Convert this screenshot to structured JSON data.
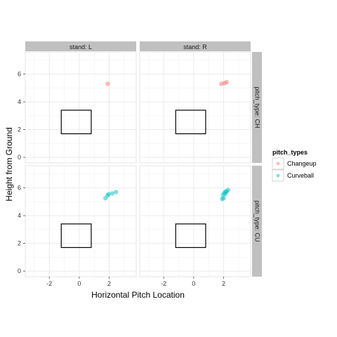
{
  "chart_data": {
    "type": "scatter",
    "xlabel": "Horizontal Pitch Location",
    "ylabel": "Height from Ground",
    "xlim": [
      -3.6,
      3.8
    ],
    "ylim": [
      -0.4,
      7.6
    ],
    "x_ticks": [
      -2,
      0,
      2
    ],
    "x_tick_labels": [
      "-2",
      "0",
      "2"
    ],
    "y_ticks": [
      0,
      2,
      4,
      6
    ],
    "y_tick_labels": [
      "0",
      "2",
      "4",
      "6"
    ],
    "grid": true,
    "facet_columns": [
      "stand: L",
      "stand: R"
    ],
    "facet_rows": [
      "pitch_type: CH",
      "pitch_type: CU"
    ],
    "strike_zone": {
      "x_min": -1.2,
      "x_max": 0.8,
      "y_min": 1.7,
      "y_max": 3.4
    },
    "legend": {
      "title": "pitch_types",
      "position": "right",
      "entries": [
        {
          "label": "Changeup",
          "color": "#F8766D"
        },
        {
          "label": "Curveball",
          "color": "#00BFC4"
        }
      ]
    },
    "panels": [
      {
        "column": "stand: L",
        "row": "pitch_type: CH",
        "series": [
          {
            "name": "Changeup",
            "points": [
              [
                1.9,
                5.3
              ]
            ]
          }
        ]
      },
      {
        "column": "stand: R",
        "row": "pitch_type: CH",
        "series": [
          {
            "name": "Changeup",
            "points": [
              [
                1.85,
                5.3
              ],
              [
                2.05,
                5.35
              ],
              [
                2.2,
                5.42
              ]
            ]
          }
        ]
      },
      {
        "column": "stand: L",
        "row": "pitch_type: CU",
        "series": [
          {
            "name": "Curveball",
            "points": [
              [
                1.75,
                5.25
              ],
              [
                1.9,
                5.45
              ],
              [
                1.95,
                5.55
              ],
              [
                2.2,
                5.6
              ],
              [
                2.45,
                5.7
              ]
            ]
          }
        ]
      },
      {
        "column": "stand: R",
        "row": "pitch_type: CU",
        "series": [
          {
            "name": "Curveball",
            "points": [
              [
                1.9,
                5.2
              ],
              [
                2.0,
                5.25
              ],
              [
                1.95,
                5.5
              ],
              [
                2.05,
                5.65
              ],
              [
                2.15,
                5.75
              ],
              [
                2.2,
                5.72
              ],
              [
                2.3,
                5.85
              ],
              [
                2.1,
                5.55
              ]
            ]
          }
        ]
      }
    ]
  }
}
